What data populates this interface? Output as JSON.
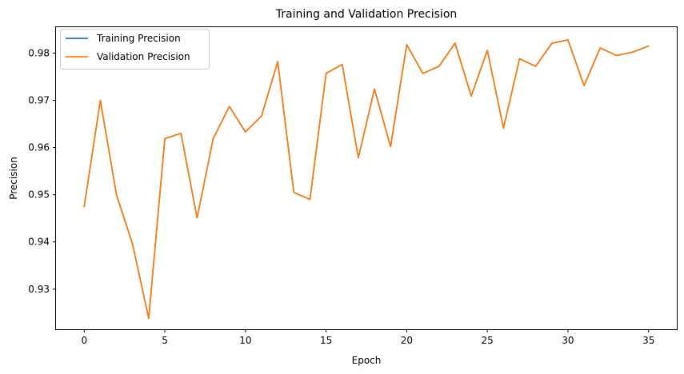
{
  "chart_data": {
    "type": "line",
    "title": "Training and Validation Precision",
    "xlabel": "Epoch",
    "ylabel": "Precision",
    "xlim": [
      -1.75,
      36.75
    ],
    "ylim": [
      0.9215,
      0.9855
    ],
    "xticks": [
      0,
      5,
      10,
      15,
      20,
      25,
      30,
      35
    ],
    "xtick_labels": [
      "0",
      "5",
      "10",
      "15",
      "20",
      "25",
      "30",
      "35"
    ],
    "yticks": [
      0.93,
      0.94,
      0.95,
      0.96,
      0.97,
      0.98
    ],
    "ytick_labels": [
      "0.93",
      "0.94",
      "0.95",
      "0.96",
      "0.97",
      "0.98"
    ],
    "grid": false,
    "legend_position": "top-left",
    "x": [
      0,
      1,
      2,
      3,
      4,
      5,
      6,
      7,
      8,
      9,
      10,
      11,
      12,
      13,
      14,
      15,
      16,
      17,
      18,
      19,
      20,
      21,
      22,
      23,
      24,
      25,
      26,
      27,
      28,
      29,
      30,
      31,
      32,
      33,
      34,
      35
    ],
    "series": [
      {
        "name": "Training Precision",
        "color": "#1f77b4",
        "values": [
          0.9475,
          0.97,
          0.95,
          0.9395,
          0.9238,
          0.9619,
          0.963,
          0.9451,
          0.9619,
          0.9687,
          0.9633,
          0.9667,
          0.9782,
          0.9505,
          0.949,
          0.9757,
          0.9776,
          0.9578,
          0.9724,
          0.9602,
          0.9818,
          0.9757,
          0.9772,
          0.9821,
          0.9709,
          0.9806,
          0.9641,
          0.9788,
          0.9772,
          0.9821,
          0.9828,
          0.9731,
          0.9811,
          0.9795,
          0.9802,
          0.9815
        ]
      },
      {
        "name": "Validation Precision",
        "color": "#ff7f0e",
        "values": [
          0.9475,
          0.97,
          0.95,
          0.9395,
          0.9238,
          0.9619,
          0.963,
          0.9451,
          0.9619,
          0.9687,
          0.9633,
          0.9667,
          0.9782,
          0.9505,
          0.949,
          0.9757,
          0.9776,
          0.9578,
          0.9724,
          0.9602,
          0.9818,
          0.9757,
          0.9772,
          0.9821,
          0.9709,
          0.9806,
          0.9641,
          0.9788,
          0.9772,
          0.9821,
          0.9828,
          0.9731,
          0.9811,
          0.9795,
          0.9802,
          0.9815
        ]
      }
    ]
  }
}
